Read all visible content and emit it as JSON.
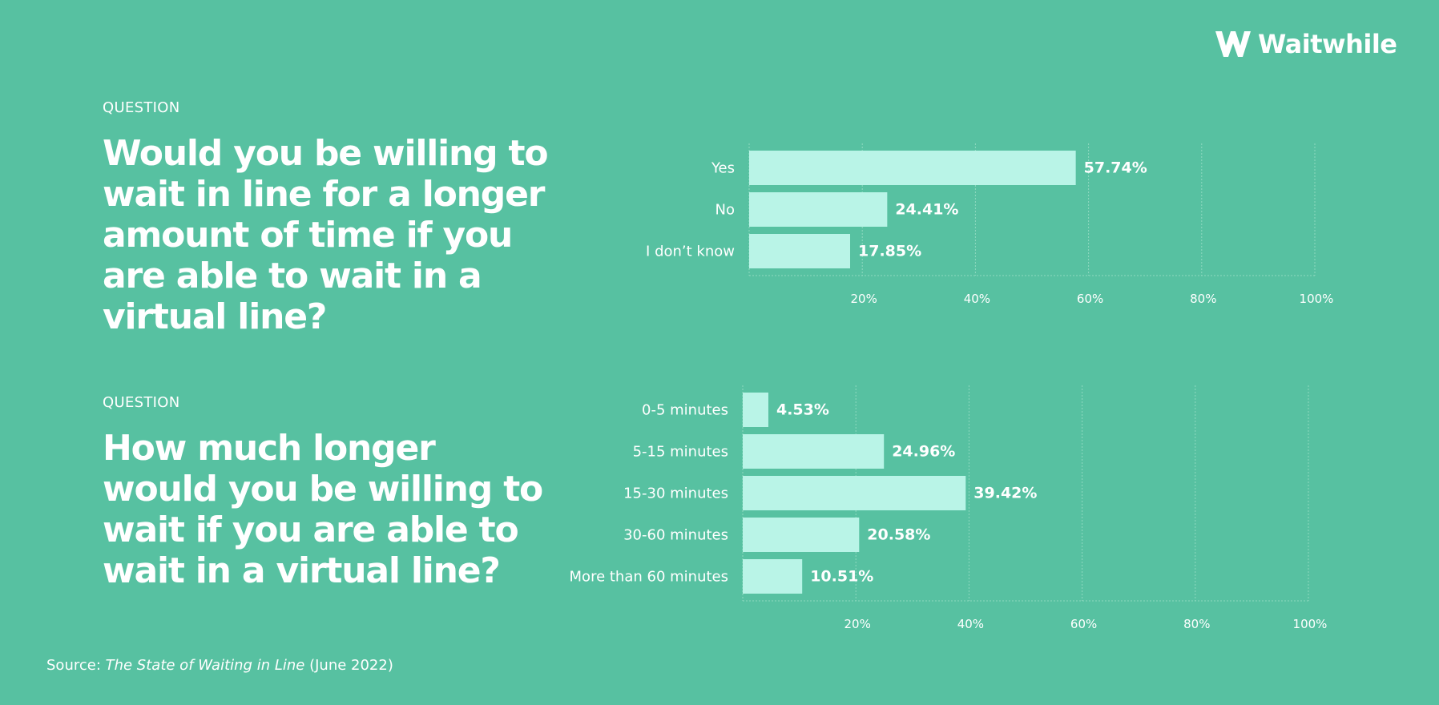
{
  "brand": {
    "name": "Waitwhile",
    "logo_icon": "waitwhile-w-icon",
    "background_color": "#57c1a1",
    "bar_color": "#b9f4e7",
    "text_color": "#ffffff"
  },
  "questions": [
    {
      "label": "QUESTION",
      "text": "Would you be willing to wait in line for a longer amount of time if you are able to wait in a virtual line?"
    },
    {
      "label": "QUESTION",
      "text": "How much longer would you be willing to wait if you are able to wait in a virtual line?"
    }
  ],
  "source": {
    "prefix": "Source: ",
    "title": "The State of Waiting in Line",
    "suffix": " (June 2022)"
  },
  "chart_data": [
    {
      "type": "bar",
      "orientation": "horizontal",
      "title": "",
      "xlabel": "",
      "ylabel": "",
      "categories": [
        "Yes",
        "No",
        "I don’t know"
      ],
      "values": [
        57.74,
        24.41,
        17.85
      ],
      "value_labels": [
        "57.74%",
        "24.41%",
        "17.85%"
      ],
      "xlim": [
        0,
        100
      ],
      "ticks": [
        "20%",
        "40%",
        "60%",
        "80%",
        "100%"
      ],
      "tick_values": [
        20,
        40,
        60,
        80,
        100
      ],
      "grid": true
    },
    {
      "type": "bar",
      "orientation": "horizontal",
      "title": "",
      "xlabel": "",
      "ylabel": "",
      "categories": [
        "0-5 minutes",
        "5-15 minutes",
        "15-30 minutes",
        "30-60 minutes",
        "More than 60 minutes"
      ],
      "values": [
        4.53,
        24.96,
        39.42,
        20.58,
        10.51
      ],
      "value_labels": [
        "4.53%",
        "24.96%",
        "39.42%",
        "20.58%",
        "10.51%"
      ],
      "xlim": [
        0,
        100
      ],
      "ticks": [
        "20%",
        "40%",
        "60%",
        "80%",
        "100%"
      ],
      "tick_values": [
        20,
        40,
        60,
        80,
        100
      ],
      "grid": true
    }
  ]
}
